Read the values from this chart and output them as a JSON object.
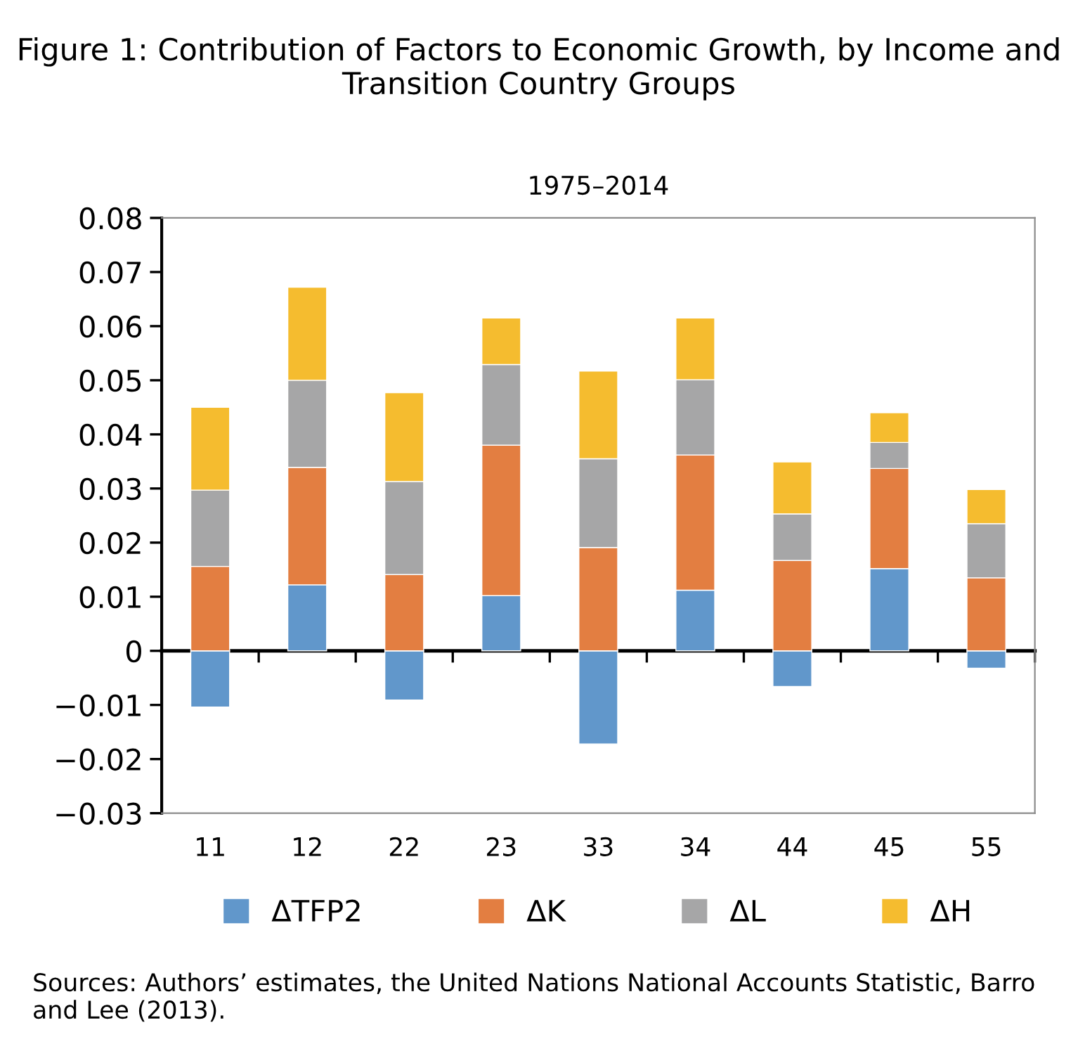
{
  "chart_data": {
    "type": "bar",
    "stacked": true,
    "title": "Figure 1: Contribution of Factors to Economic Growth, by Income and Transition Country Groups",
    "subtitle": "1975–2014",
    "categories": [
      "11",
      "12",
      "22",
      "23",
      "33",
      "34",
      "44",
      "45",
      "55"
    ],
    "series": [
      {
        "name": "ΔTFP2",
        "color": "#6197cb",
        "values": [
          -0.0104,
          0.0122,
          -0.0091,
          0.0102,
          -0.0172,
          0.0112,
          -0.0066,
          0.0152,
          -0.0032
        ]
      },
      {
        "name": "ΔK",
        "color": "#e37e41",
        "values": [
          0.0156,
          0.0217,
          0.0141,
          0.0278,
          0.0191,
          0.025,
          0.0167,
          0.0185,
          0.0135
        ]
      },
      {
        "name": "ΔL",
        "color": "#a6a6a7",
        "values": [
          0.0141,
          0.0161,
          0.0172,
          0.0149,
          0.0164,
          0.0139,
          0.0086,
          0.0048,
          0.01
        ]
      },
      {
        "name": "ΔH",
        "color": "#f5bc2f",
        "values": [
          0.0153,
          0.0172,
          0.0164,
          0.0086,
          0.0162,
          0.0114,
          0.0096,
          0.0055,
          0.0063
        ]
      }
    ],
    "ylim": [
      -0.03,
      0.08
    ],
    "yticks": [
      {
        "value": -0.03,
        "label": "−0.03"
      },
      {
        "value": -0.02,
        "label": "−0.02"
      },
      {
        "value": -0.01,
        "label": "−0.01"
      },
      0,
      0.01,
      0.02,
      0.03,
      0.04,
      0.05,
      0.06,
      0.07,
      0.08
    ],
    "legend": "bottom",
    "annotations": [
      "Sources: Authors’ estimates, the United Nations National Accounts Statistic, Barro and Lee (2013)."
    ]
  }
}
